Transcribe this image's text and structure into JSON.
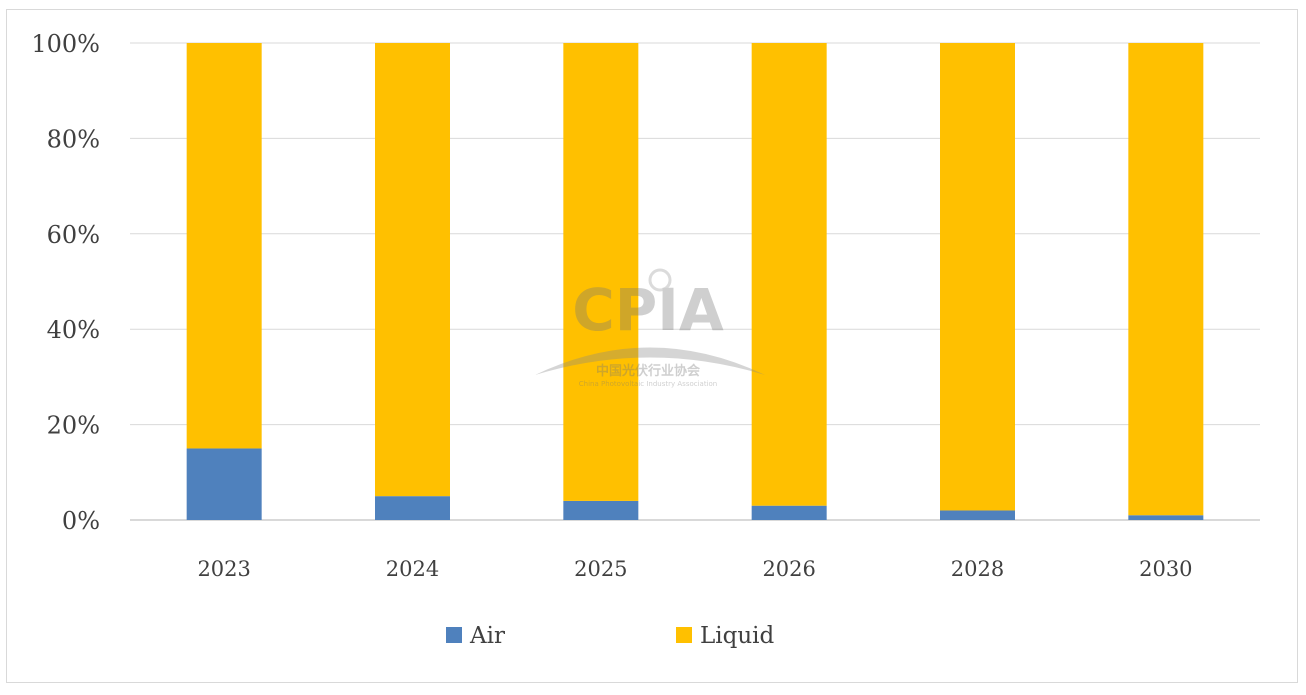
{
  "chart_data": {
    "type": "bar",
    "stacked": "percent",
    "categories": [
      "2023",
      "2024",
      "2025",
      "2026",
      "2028",
      "2030"
    ],
    "series": [
      {
        "name": "Air",
        "values": [
          15,
          5,
          4,
          3,
          2,
          1
        ],
        "color": "#4f81bd"
      },
      {
        "name": "Liquid",
        "values": [
          85,
          95,
          96,
          97,
          98,
          99
        ],
        "color": "#ffc000"
      }
    ],
    "ylim": [
      0,
      100
    ],
    "yticks": [
      "0%",
      "20%",
      "40%",
      "60%",
      "80%",
      "100%"
    ],
    "grid": true,
    "legend": "bottom",
    "title": "",
    "xlabel": "",
    "ylabel": ""
  },
  "watermark": {
    "logo_text": "CPIA",
    "chinese_name": "中国光伏行业协会",
    "english_name": "China Photovoltaic Industry Association"
  }
}
